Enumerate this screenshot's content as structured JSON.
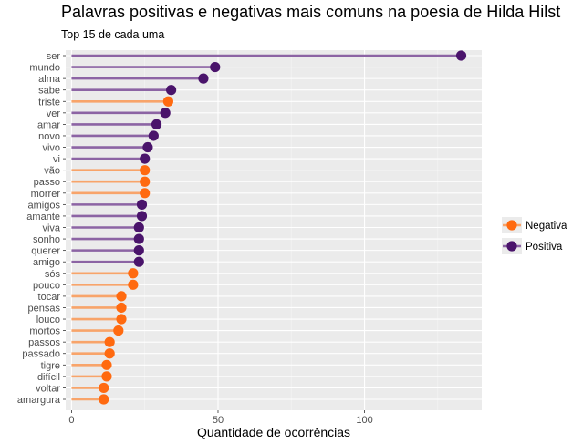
{
  "chart_data": {
    "type": "lollipop",
    "title": "Palavras positivas e negativas mais comuns na poesia de Hilda Hilst",
    "subtitle": "Top 15 de cada uma",
    "xlabel": "Quantidade de ocorrências",
    "ylabel": "",
    "xlim": [
      -2,
      140
    ],
    "x_ticks": [
      0,
      50,
      100
    ],
    "grid": true,
    "legend_position": "right",
    "legend": [
      {
        "name": "Negativa",
        "color": "#ff6a10"
      },
      {
        "name": "Positiva",
        "color": "#4a146b"
      }
    ],
    "colors": {
      "Negativa": {
        "point": "#ff6a10",
        "segment": "#f8a46a"
      },
      "Positiva": {
        "point": "#4a146b",
        "segment": "#8c64a4"
      }
    },
    "points": [
      {
        "word": "ser",
        "value": 133,
        "sentiment": "Positiva"
      },
      {
        "word": "mundo",
        "value": 49,
        "sentiment": "Positiva"
      },
      {
        "word": "alma",
        "value": 45,
        "sentiment": "Positiva"
      },
      {
        "word": "sabe",
        "value": 34,
        "sentiment": "Positiva"
      },
      {
        "word": "triste",
        "value": 33,
        "sentiment": "Negativa"
      },
      {
        "word": "ver",
        "value": 32,
        "sentiment": "Positiva"
      },
      {
        "word": "amar",
        "value": 29,
        "sentiment": "Positiva"
      },
      {
        "word": "novo",
        "value": 28,
        "sentiment": "Positiva"
      },
      {
        "word": "vivo",
        "value": 26,
        "sentiment": "Positiva"
      },
      {
        "word": "vi",
        "value": 25,
        "sentiment": "Positiva"
      },
      {
        "word": "vão",
        "value": 25,
        "sentiment": "Negativa"
      },
      {
        "word": "passo",
        "value": 25,
        "sentiment": "Negativa"
      },
      {
        "word": "morrer",
        "value": 25,
        "sentiment": "Negativa"
      },
      {
        "word": "amigos",
        "value": 24,
        "sentiment": "Positiva"
      },
      {
        "word": "amante",
        "value": 24,
        "sentiment": "Positiva"
      },
      {
        "word": "viva",
        "value": 23,
        "sentiment": "Positiva"
      },
      {
        "word": "sonho",
        "value": 23,
        "sentiment": "Positiva"
      },
      {
        "word": "querer",
        "value": 23,
        "sentiment": "Positiva"
      },
      {
        "word": "amigo",
        "value": 23,
        "sentiment": "Positiva"
      },
      {
        "word": "sós",
        "value": 21,
        "sentiment": "Negativa"
      },
      {
        "word": "pouco",
        "value": 21,
        "sentiment": "Negativa"
      },
      {
        "word": "tocar",
        "value": 17,
        "sentiment": "Negativa"
      },
      {
        "word": "pensas",
        "value": 17,
        "sentiment": "Negativa"
      },
      {
        "word": "louco",
        "value": 17,
        "sentiment": "Negativa"
      },
      {
        "word": "mortos",
        "value": 16,
        "sentiment": "Negativa"
      },
      {
        "word": "passos",
        "value": 13,
        "sentiment": "Negativa"
      },
      {
        "word": "passado",
        "value": 13,
        "sentiment": "Negativa"
      },
      {
        "word": "tigre",
        "value": 12,
        "sentiment": "Negativa"
      },
      {
        "word": "difícil",
        "value": 12,
        "sentiment": "Negativa"
      },
      {
        "word": "voltar",
        "value": 11,
        "sentiment": "Negativa"
      },
      {
        "word": "amargura",
        "value": 11,
        "sentiment": "Negativa"
      }
    ]
  }
}
